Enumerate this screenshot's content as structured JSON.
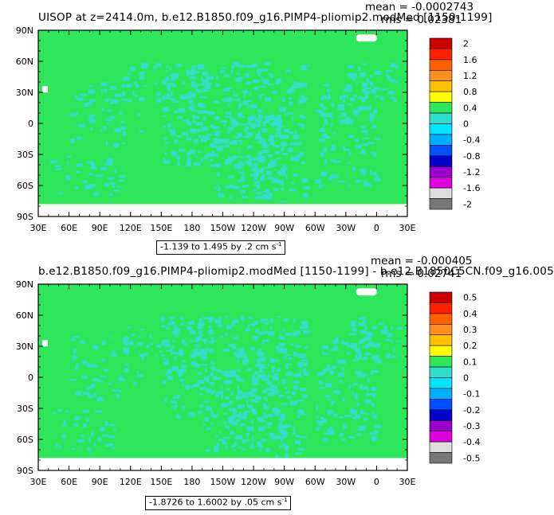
{
  "colors": {
    "field": "#2EE65A",
    "negative_small": "#33DDCC",
    "ocean_blank": "#FFFFFF",
    "frame": "#000000"
  },
  "panels": [
    {
      "title": "UISOP at z=2414.0m, b.e12.B1850.f09_g16.PIMP4-pliomip2.modMed [1150-1199]",
      "mean_text": "mean = -0.0002743",
      "rms_text": "rms = 0.02381",
      "range_text": "-1.139 to 1.495 by .2 cm s",
      "range_unit_exp": "-1",
      "colorbar_labels": [
        "2",
        "1.6",
        "1.2",
        "0.8",
        "0.4",
        "0",
        "-0.4",
        "-0.8",
        "-1.2",
        "-1.6",
        "-2"
      ],
      "colorbar_colors": [
        "#CC0000",
        "#FF2000",
        "#FF6000",
        "#FF9020",
        "#FFC000",
        "#FFFF00",
        "#2EE65A",
        "#33DDCC",
        "#00E5FF",
        "#00B0FF",
        "#0050FF",
        "#0000CC",
        "#9900CC",
        "#DD00DD",
        "#DDDDDD",
        "#777777"
      ]
    },
    {
      "title": "b.e12.B1850.f09_g16.PIMP4-pliomip2.modMed [1150-1199] - b.e12.B1850C5CN.f09_g16.005",
      "mean_text": "mean = -0.000405",
      "rms_text": "rms = 0.02741",
      "range_text": "-1.8726 to 1.6002 by .05 cm s",
      "range_unit_exp": "-1",
      "colorbar_labels": [
        "0.5",
        "0.4",
        "0.3",
        "0.2",
        "0.1",
        "0",
        "-0.1",
        "-0.2",
        "-0.3",
        "-0.4",
        "-0.5"
      ],
      "colorbar_colors": [
        "#CC0000",
        "#FF2000",
        "#FF6000",
        "#FF9020",
        "#FFC000",
        "#FFFF00",
        "#2EE65A",
        "#33DDCC",
        "#00E5FF",
        "#00B0FF",
        "#0050FF",
        "#0000CC",
        "#9900CC",
        "#DD00DD",
        "#DDDDDD",
        "#777777"
      ]
    }
  ],
  "axes": {
    "lat_labels": [
      "90N",
      "60N",
      "30N",
      "0",
      "30S",
      "60S",
      "90S"
    ],
    "lon_labels": [
      "30E",
      "60E",
      "90E",
      "120E",
      "150E",
      "180",
      "150W",
      "120W",
      "90W",
      "60W",
      "30W",
      "0",
      "30E"
    ]
  },
  "chart_data": [
    {
      "type": "heatmap",
      "title": "UISOP at z=2414.0m, b.e12.B1850.f09_g16.PIMP4-pliomip2.modMed [1150-1199]",
      "xlabel": "",
      "ylabel": "",
      "x_ticks": [
        "30E",
        "60E",
        "90E",
        "120E",
        "150E",
        "180",
        "150W",
        "120W",
        "90W",
        "60W",
        "30W",
        "0",
        "30E"
      ],
      "y_ticks": [
        "90N",
        "60N",
        "30N",
        "0",
        "30S",
        "60S",
        "90S"
      ],
      "xlim": [
        30,
        390
      ],
      "ylim": [
        -90,
        90
      ],
      "data_extent_lat": [
        -78,
        90
      ],
      "min": -1.139,
      "max": 1.495,
      "contour_interval": 0.2,
      "units": "cm s-1",
      "mean": -0.0002743,
      "rms": 0.02381,
      "colorbar_levels": [
        2,
        1.6,
        1.2,
        0.8,
        0.4,
        0,
        -0.4,
        -0.8,
        -1.2,
        -1.6,
        -2
      ]
    },
    {
      "type": "heatmap",
      "title": "b.e12.B1850.f09_g16.PIMP4-pliomip2.modMed [1150-1199] - b.e12.B1850C5CN.f09_g16.005",
      "xlabel": "",
      "ylabel": "",
      "x_ticks": [
        "30E",
        "60E",
        "90E",
        "120E",
        "150E",
        "180",
        "150W",
        "120W",
        "90W",
        "60W",
        "30W",
        "0",
        "30E"
      ],
      "y_ticks": [
        "90N",
        "60N",
        "30N",
        "0",
        "30S",
        "60S",
        "90S"
      ],
      "xlim": [
        30,
        390
      ],
      "ylim": [
        -90,
        90
      ],
      "data_extent_lat": [
        -78,
        90
      ],
      "min": -1.8726,
      "max": 1.6002,
      "contour_interval": 0.05,
      "units": "cm s-1",
      "mean": -0.000405,
      "rms": 0.02741,
      "colorbar_levels": [
        0.5,
        0.4,
        0.3,
        0.2,
        0.1,
        0,
        -0.1,
        -0.2,
        -0.3,
        -0.4,
        -0.5
      ]
    }
  ]
}
